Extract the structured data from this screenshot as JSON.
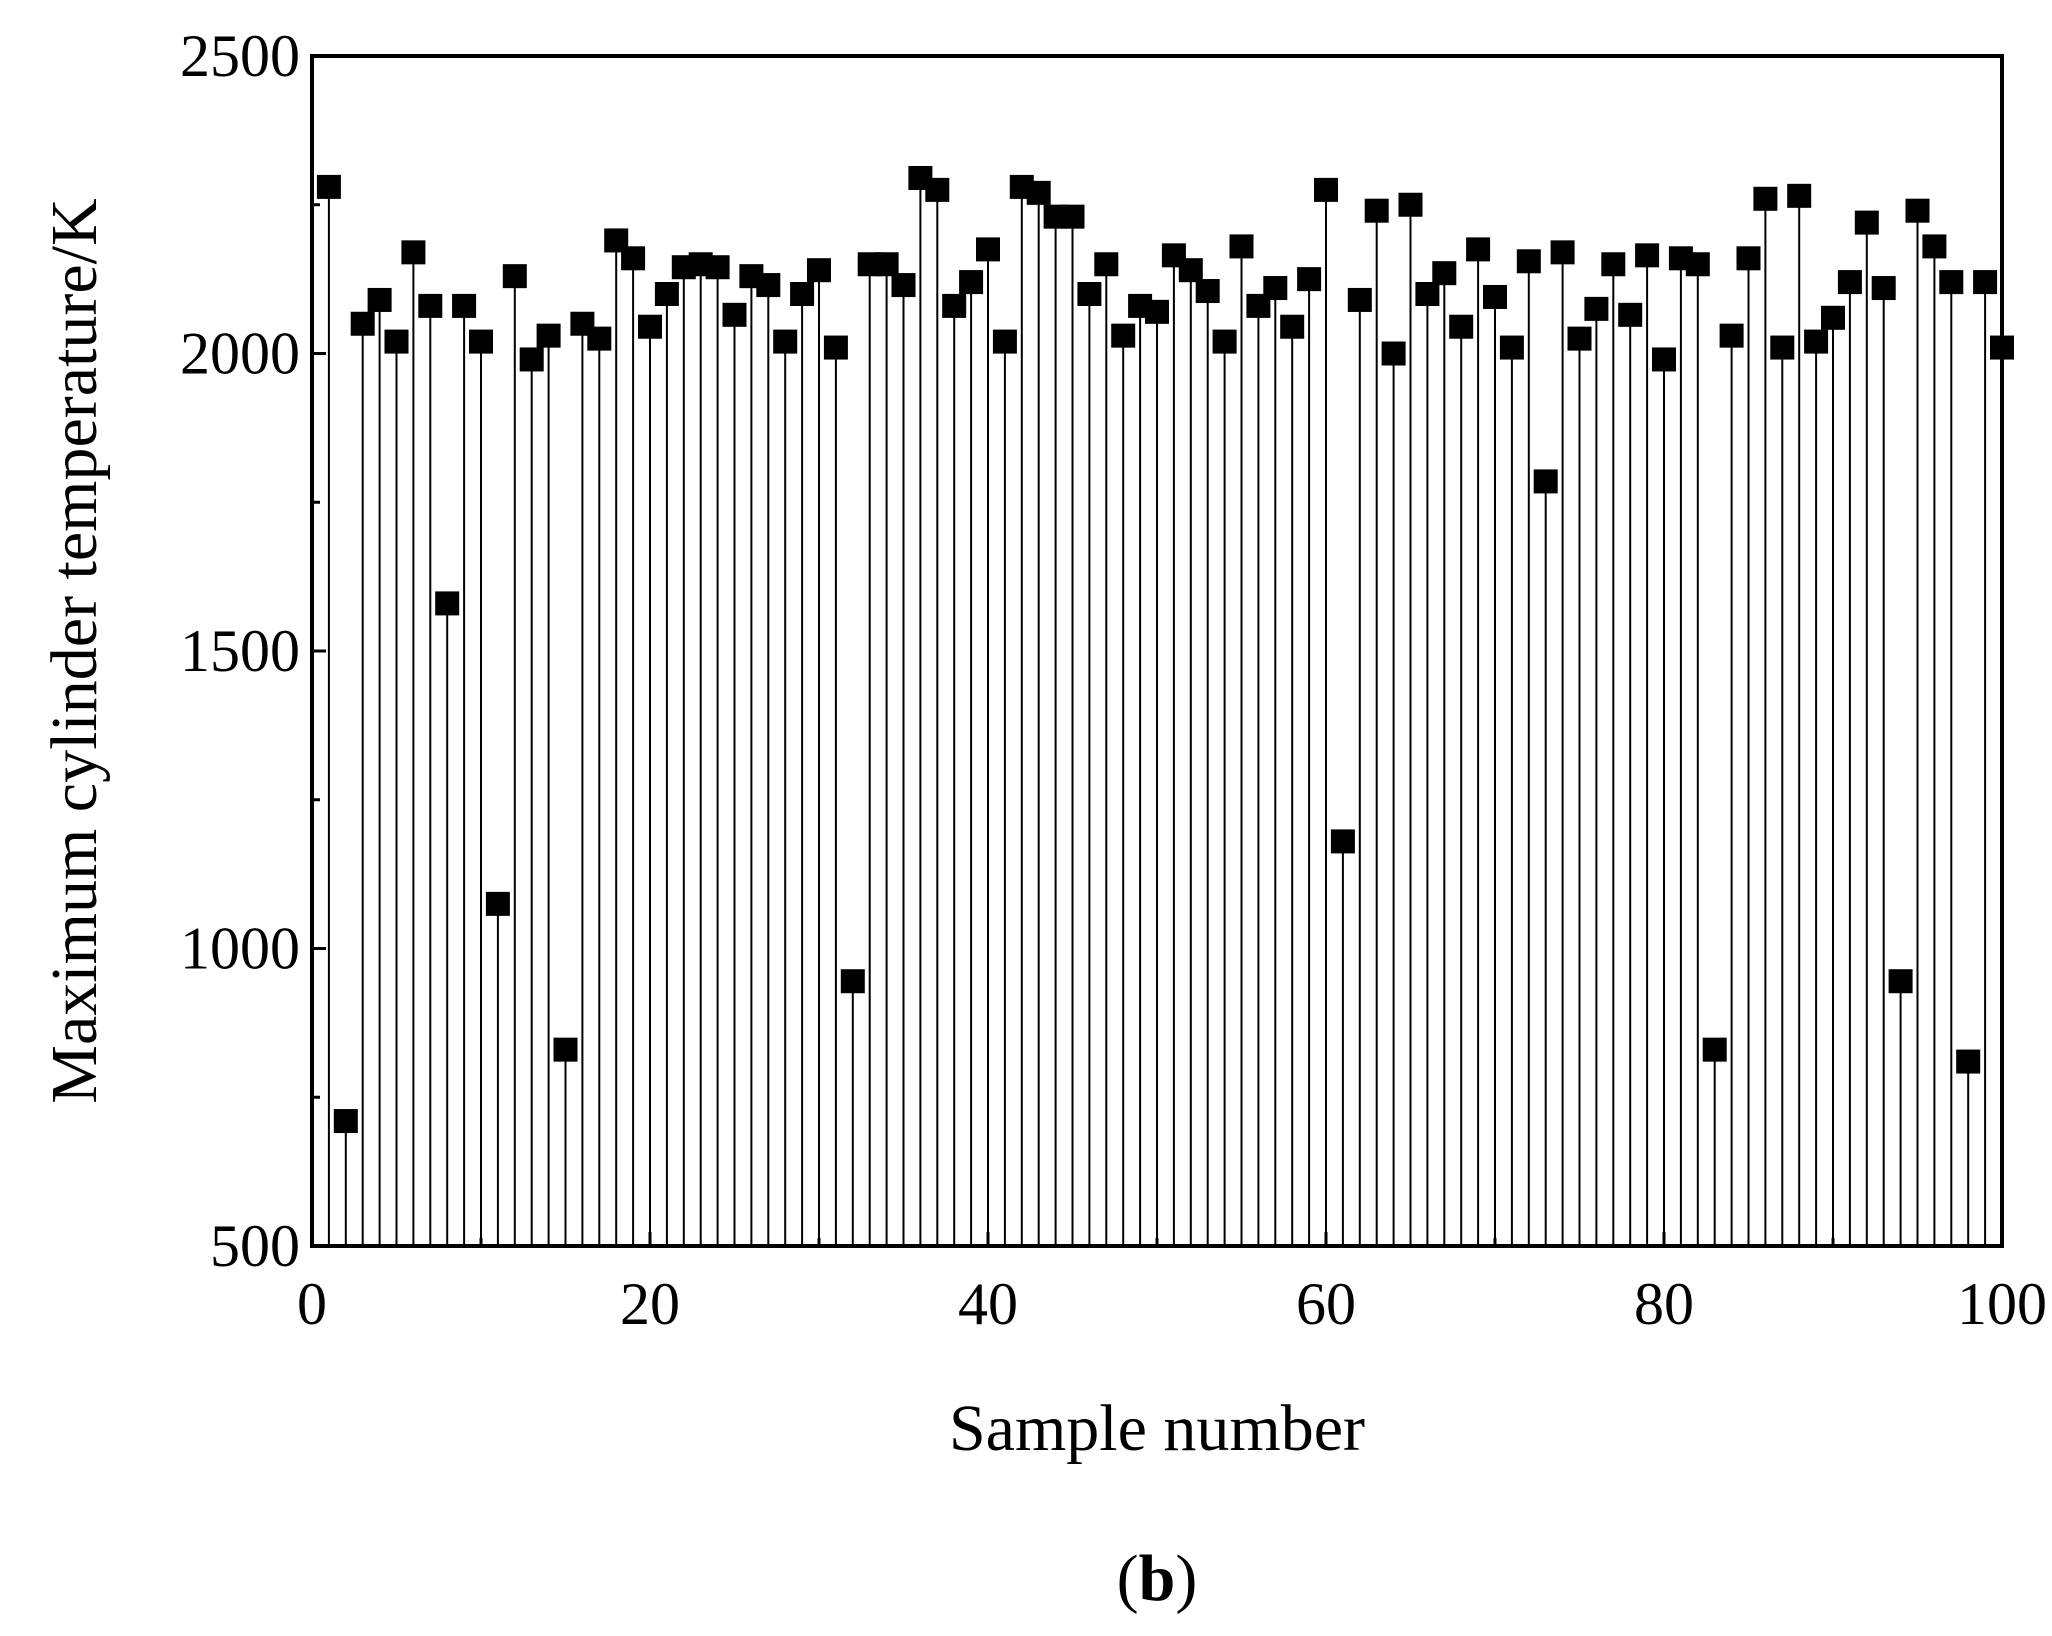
{
  "chart_data": {
    "type": "scatter",
    "style": "drop-line (stem) scatter with filled square markers",
    "xlabel": "Sample number",
    "ylabel": "Maximum cylinder temperature/K",
    "xlim": [
      0,
      100
    ],
    "ylim": [
      500,
      2500
    ],
    "xticks": [
      0,
      20,
      40,
      60,
      80,
      100
    ],
    "yticks": [
      500,
      1000,
      1500,
      2000,
      2500
    ],
    "grid": false,
    "legend": "none",
    "panel_label": {
      "open": "(",
      "letter": "b",
      "close": ")"
    },
    "colors": {
      "marker": "#000000",
      "stem": "#000000",
      "axis": "#000000"
    },
    "series": [
      {
        "x": [
          1,
          2,
          3,
          4,
          5,
          6,
          7,
          8,
          9,
          10,
          11,
          12,
          13,
          14,
          15,
          16,
          17,
          18,
          19,
          20,
          21,
          22,
          23,
          24,
          25,
          26,
          27,
          28,
          29,
          30,
          31,
          32,
          33,
          34,
          35,
          36,
          37,
          38,
          39,
          40,
          41,
          42,
          43,
          44,
          45,
          46,
          47,
          48,
          49,
          50,
          51,
          52,
          53,
          54,
          55,
          56,
          57,
          58,
          59,
          60,
          61,
          62,
          63,
          64,
          65,
          66,
          67,
          68,
          69,
          70,
          71,
          72,
          73,
          74,
          75,
          76,
          77,
          78,
          79,
          80,
          81,
          82,
          83,
          84,
          85,
          86,
          87,
          88,
          89,
          90,
          91,
          92,
          93,
          94,
          95,
          96,
          97,
          98,
          99,
          100
        ],
        "y": [
          2280,
          710,
          2050,
          2090,
          2020,
          2170,
          2080,
          1580,
          2080,
          2020,
          1075,
          2130,
          1990,
          2030,
          830,
          2050,
          2025,
          2190,
          2160,
          2045,
          2100,
          2145,
          2150,
          2145,
          2065,
          2130,
          2115,
          2020,
          2100,
          2140,
          2010,
          945,
          2150,
          2150,
          2115,
          2295,
          2275,
          2080,
          2120,
          2175,
          2020,
          2280,
          2270,
          2230,
          2230,
          2100,
          2150,
          2030,
          2080,
          2070,
          2165,
          2140,
          2105,
          2020,
          2180,
          2080,
          2110,
          2045,
          2125,
          2275,
          1180,
          2090,
          2240,
          2000,
          2250,
          2100,
          2135,
          2045,
          2175,
          2095,
          2010,
          2155,
          1785,
          2170,
          2025,
          2075,
          2150,
          2065,
          2165,
          1990,
          2160,
          2150,
          830,
          2030,
          2160,
          2260,
          2010,
          2265,
          2020,
          2060,
          2120,
          2220,
          2110,
          945,
          2240,
          2180,
          2120,
          810,
          2120,
          2010
        ]
      }
    ]
  }
}
